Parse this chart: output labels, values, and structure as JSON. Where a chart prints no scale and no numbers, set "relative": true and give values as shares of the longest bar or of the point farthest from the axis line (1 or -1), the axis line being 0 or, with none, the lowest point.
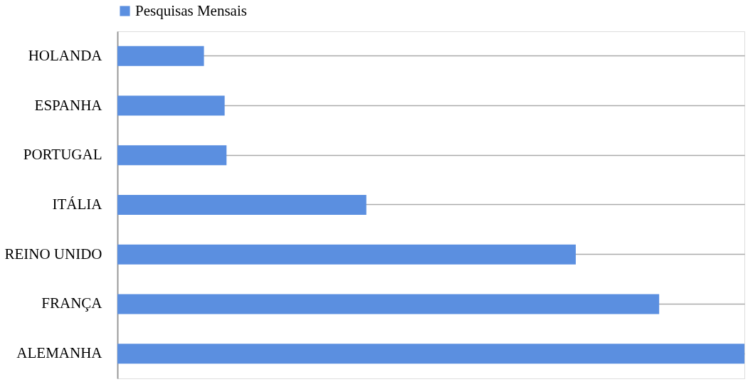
{
  "chart_data": {
    "type": "bar",
    "orientation": "horizontal",
    "relative": true,
    "categories": [
      "HOLANDA",
      "ESPANHA",
      "PORTUGAL",
      "ITÁLIA",
      "REINO UNIDO",
      "FRANÇA",
      "ALEMANHA"
    ],
    "series": [
      {
        "name": "Pesquisas Mensais",
        "color": "#5b8fe0",
        "values": [
          0.138,
          0.171,
          0.174,
          0.397,
          0.731,
          0.864,
          1
        ]
      }
    ],
    "grid": "y",
    "legend": "top"
  }
}
